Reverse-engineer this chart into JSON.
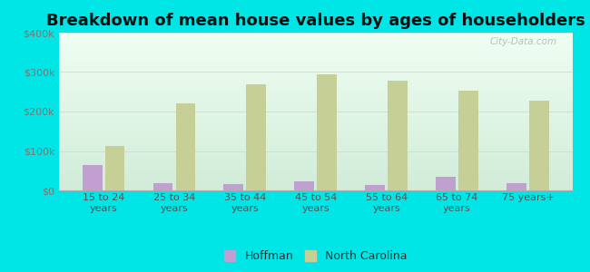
{
  "title": "Breakdown of mean house values by ages of householders",
  "categories": [
    "15 to 24\nyears",
    "25 to 34\nyears",
    "35 to 44\nyears",
    "45 to 54\nyears",
    "55 to 64\nyears",
    "65 to 74\nyears",
    "75 years+"
  ],
  "hoffman_values": [
    65000,
    18000,
    15000,
    22000,
    13000,
    35000,
    19000
  ],
  "nc_values": [
    112000,
    220000,
    270000,
    295000,
    278000,
    252000,
    228000
  ],
  "hoffman_color": "#c0a0d0",
  "nc_color": "#c5cf96",
  "ylim": [
    0,
    400000
  ],
  "yticks": [
    0,
    100000,
    200000,
    300000,
    400000
  ],
  "ytick_labels": [
    "$0",
    "$100k",
    "$200k",
    "$300k",
    "$400k"
  ],
  "background_color": "#00e5e5",
  "plot_bg_color": "#e8f5e8",
  "bar_width": 0.28,
  "legend_labels": [
    "Hoffman",
    "North Carolina"
  ],
  "watermark": "City-Data.com",
  "title_fontsize": 13,
  "tick_fontsize": 8,
  "xlabel_fontsize": 8
}
